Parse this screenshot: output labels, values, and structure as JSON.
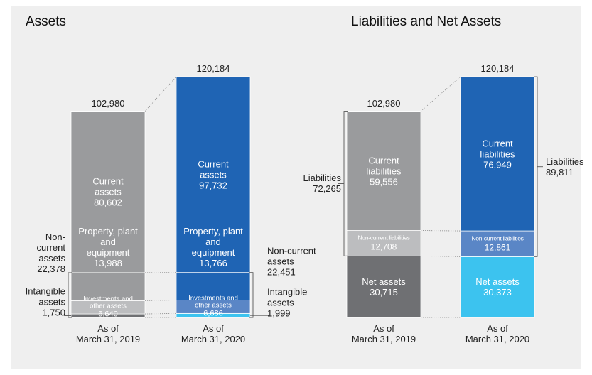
{
  "chart_data": [
    {
      "type": "stacked_bar",
      "title": "Assets",
      "categories": [
        "As of\nMarch 31, 2019",
        "As of\nMarch 31, 2020"
      ],
      "series": [
        {
          "name": "Current assets",
          "colors": [
            "#9a9b9d",
            "#1f64b4"
          ],
          "values": [
            80602,
            97732
          ],
          "value_labels": [
            "80,602",
            "97,732"
          ]
        },
        {
          "name": "Property, plant and equipment",
          "colors": [
            "#9a9b9d",
            "#1f64b4"
          ],
          "values": [
            13988,
            13766
          ],
          "value_labels": [
            "13,988",
            "13,766"
          ]
        },
        {
          "name": "Investments and other assets",
          "colors": [
            "#bcbdbf",
            "#5a86c6"
          ],
          "values": [
            6640,
            6686
          ],
          "value_labels": [
            "6,640",
            "6,686"
          ]
        },
        {
          "name": "Intangible assets",
          "colors": [
            "#6f7073",
            "#3cc3ef"
          ],
          "values": [
            1750,
            1999
          ],
          "value_labels": [
            "1,750",
            "1,999"
          ]
        }
      ],
      "totals": [
        102980,
        120184
      ],
      "total_labels": [
        "102,980",
        "120,184"
      ],
      "groups": [
        {
          "name": "Non-current assets",
          "values": [
            22378,
            22451
          ],
          "value_labels": [
            "22,378",
            "22,451"
          ]
        }
      ]
    },
    {
      "type": "stacked_bar",
      "title": "Liabilities and Net Assets",
      "categories": [
        "As of\nMarch 31, 2019",
        "As of\nMarch 31, 2020"
      ],
      "series": [
        {
          "name": "Current liabilities",
          "colors": [
            "#9a9b9d",
            "#1f64b4"
          ],
          "values": [
            59556,
            76949
          ],
          "value_labels": [
            "59,556",
            "76,949"
          ]
        },
        {
          "name": "Non-current liabilities",
          "colors": [
            "#bcbdbf",
            "#5a86c6"
          ],
          "values": [
            12708,
            12861
          ],
          "value_labels": [
            "12,708",
            "12,861"
          ]
        },
        {
          "name": "Net assets",
          "colors": [
            "#6f7073",
            "#3cc3ef"
          ],
          "values": [
            30715,
            30373
          ],
          "value_labels": [
            "30,715",
            "30,373"
          ]
        }
      ],
      "totals": [
        102980,
        120184
      ],
      "total_labels": [
        "102,980",
        "120,184"
      ],
      "groups": [
        {
          "name": "Liabilities",
          "values": [
            72265,
            89811
          ],
          "value_labels": [
            "72,265",
            "89,811"
          ]
        }
      ]
    }
  ]
}
